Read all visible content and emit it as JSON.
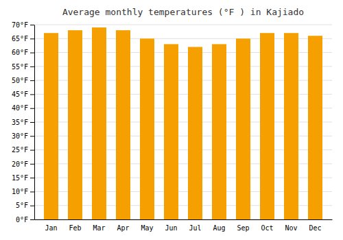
{
  "chart_data": {
    "type": "bar",
    "title": "Average monthly temperatures (°F ) in Kajiado",
    "categories": [
      "Jan",
      "Feb",
      "Mar",
      "Apr",
      "May",
      "Jun",
      "Jul",
      "Aug",
      "Sep",
      "Oct",
      "Nov",
      "Dec"
    ],
    "values": [
      67,
      68,
      69,
      68,
      65,
      63,
      62,
      63,
      65,
      67,
      67,
      66
    ],
    "color": "#F5A000",
    "ylim": [
      0,
      70
    ],
    "yticks": [
      {
        "value": 0,
        "label": "0°F"
      },
      {
        "value": 5,
        "label": "5°F"
      },
      {
        "value": 10,
        "label": "10°F"
      },
      {
        "value": 15,
        "label": "15°F"
      },
      {
        "value": 20,
        "label": "20°F"
      },
      {
        "value": 25,
        "label": "25°F"
      },
      {
        "value": 30,
        "label": "30°F"
      },
      {
        "value": 35,
        "label": "35°F"
      },
      {
        "value": 40,
        "label": "40°F"
      },
      {
        "value": 45,
        "label": "45°F"
      },
      {
        "value": 50,
        "label": "50°F"
      },
      {
        "value": 55,
        "label": "55°F"
      },
      {
        "value": 60,
        "label": "60°F"
      },
      {
        "value": 65,
        "label": "65°F"
      },
      {
        "value": 70,
        "label": "70°F"
      }
    ],
    "grid": true
  }
}
